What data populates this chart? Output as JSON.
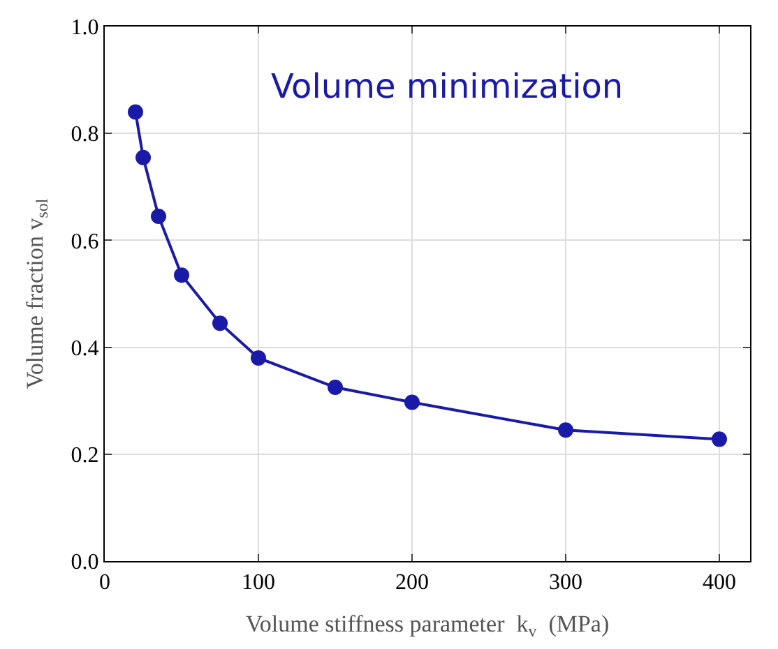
{
  "chart_data": {
    "type": "line",
    "xlabel": "Volume stiffness parameter  k$_{v}$  (MPa)",
    "ylabel": "Volume fraction v$_{sol}$",
    "annotations": [
      "Volume minimization"
    ],
    "x": [
      20,
      25,
      35,
      50,
      75,
      100,
      150,
      200,
      300,
      400
    ],
    "series": [
      {
        "color": "#1a1aa8",
        "values": [
          0.84,
          0.755,
          0.645,
          0.535,
          0.445,
          0.38,
          0.325,
          0.297,
          0.245,
          0.228
        ]
      }
    ],
    "xlim": [
      0,
      420
    ],
    "ylim": [
      0,
      1
    ],
    "xticks": [
      0,
      100,
      200,
      300,
      400
    ],
    "yticks": [
      {
        "value": 0,
        "label": "0.0"
      },
      {
        "value": 0.2,
        "label": "0.2"
      },
      {
        "value": 0.4,
        "label": "0.4"
      },
      {
        "value": 0.6,
        "label": "0.6"
      },
      {
        "value": 0.8,
        "label": "0.8"
      },
      {
        "value": 1,
        "label": "1.0"
      }
    ],
    "grid": true,
    "marker": "circle",
    "line_style": "solid"
  }
}
